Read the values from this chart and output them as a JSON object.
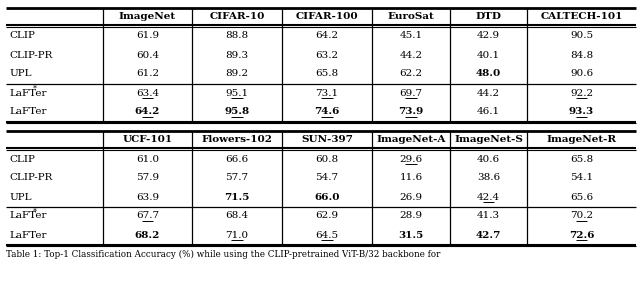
{
  "t1_headers": [
    "",
    "ImageNet",
    "CIFAR-10",
    "CIFAR-100",
    "EuroSat",
    "DTD",
    "CALTECH-101"
  ],
  "t1_rows": [
    [
      "CLIP",
      "61.9",
      "88.8",
      "64.2",
      "45.1",
      "42.9",
      "90.5"
    ],
    [
      "CLIP-PR",
      "60.4",
      "89.3",
      "63.2",
      "44.2",
      "40.1",
      "84.8"
    ],
    [
      "UPL",
      "61.2",
      "89.2",
      "65.8",
      "62.2",
      "48.0",
      "90.6"
    ],
    [
      "LaFTer*",
      "63.4",
      "95.1",
      "73.1",
      "69.7",
      "44.2",
      "92.2"
    ],
    [
      "LaFTer",
      "64.2",
      "95.8",
      "74.6",
      "73.9",
      "46.1",
      "93.3"
    ]
  ],
  "t1_bold": [
    [],
    [],
    [
      5
    ],
    [],
    [
      1,
      2,
      3,
      4,
      6
    ]
  ],
  "t1_underline": [
    [],
    [],
    [],
    [
      1,
      2,
      3,
      4,
      6
    ],
    [
      1,
      2,
      3,
      4,
      6
    ]
  ],
  "t2_headers": [
    "",
    "UCF-101",
    "Flowers-102",
    "SUN-397",
    "ImageNet-A",
    "ImageNet-S",
    "ImageNet-R"
  ],
  "t2_rows": [
    [
      "CLIP",
      "61.0",
      "66.6",
      "60.8",
      "29.6",
      "40.6",
      "65.8"
    ],
    [
      "CLIP-PR",
      "57.9",
      "57.7",
      "54.7",
      "11.6",
      "38.6",
      "54.1"
    ],
    [
      "UPL",
      "63.9",
      "71.5",
      "66.0",
      "26.9",
      "42.4",
      "65.6"
    ],
    [
      "LaFTer*",
      "67.7",
      "68.4",
      "62.9",
      "28.9",
      "41.3",
      "70.2"
    ],
    [
      "LaFTer",
      "68.2",
      "71.0",
      "64.5",
      "31.5",
      "42.7",
      "72.6"
    ]
  ],
  "t2_bold": [
    [],
    [],
    [
      2,
      3
    ],
    [],
    [
      1,
      4,
      5,
      6
    ]
  ],
  "t2_underline": [
    [
      4
    ],
    [],
    [
      5
    ],
    [
      1,
      6
    ],
    [
      2,
      3,
      6
    ]
  ],
  "caption": "Table 1: Top-1 Classification Accuracy (%) while using the CLIP-pretrained ViT-B/32 backbone for"
}
